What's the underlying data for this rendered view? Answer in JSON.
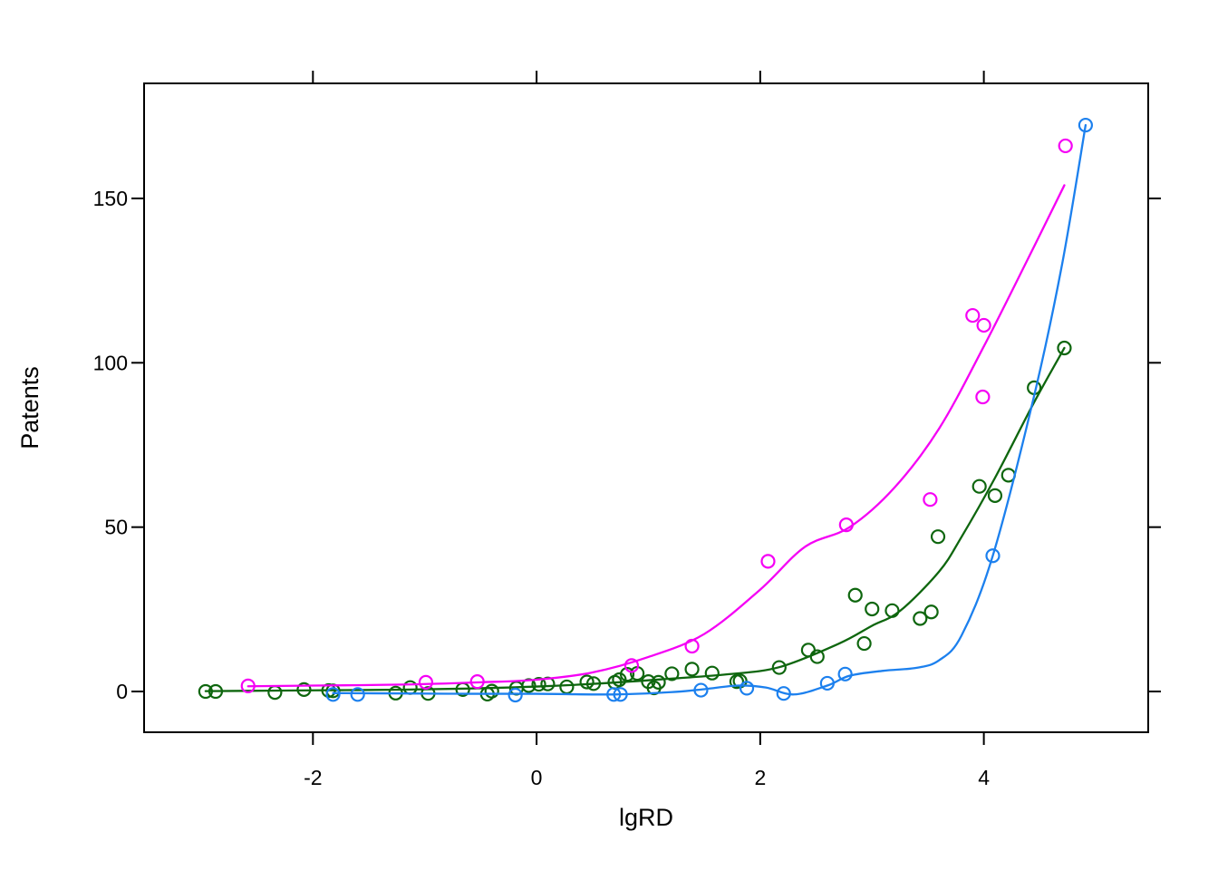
{
  "chart_data": {
    "type": "scatter",
    "title": "",
    "xlabel": "lgRD",
    "ylabel": "Patents",
    "xlim": [
      -3.51,
      5.47
    ],
    "ylim": [
      -12.4,
      185
    ],
    "x_ticks": [
      -2,
      0,
      2,
      4
    ],
    "y_ticks": [
      0,
      50,
      100,
      150
    ],
    "grid": false,
    "legend": "none",
    "marker": "open-circle",
    "frame_color": "#000000",
    "series": [
      {
        "name": "series-green",
        "color": "#0E660E",
        "points": [
          [
            -2.96,
            0.0
          ],
          [
            -2.87,
            0.0
          ],
          [
            -2.34,
            -0.3
          ],
          [
            -2.08,
            0.6
          ],
          [
            -1.86,
            0.3
          ],
          [
            -1.82,
            0.2
          ],
          [
            -1.26,
            -0.5
          ],
          [
            -1.13,
            1.2
          ],
          [
            -0.97,
            -0.6
          ],
          [
            -0.66,
            0.6
          ],
          [
            -0.44,
            -0.8
          ],
          [
            -0.4,
            0.1
          ],
          [
            -0.18,
            1.0
          ],
          [
            -0.07,
            1.8
          ],
          [
            0.02,
            2.2
          ],
          [
            0.1,
            2.3
          ],
          [
            0.27,
            1.4
          ],
          [
            0.45,
            2.9
          ],
          [
            0.51,
            2.4
          ],
          [
            0.7,
            2.8
          ],
          [
            0.74,
            3.6
          ],
          [
            0.81,
            5.2
          ],
          [
            0.9,
            5.5
          ],
          [
            1.0,
            3.0
          ],
          [
            1.05,
            1.1
          ],
          [
            1.09,
            2.8
          ],
          [
            1.21,
            5.4
          ],
          [
            1.39,
            6.8
          ],
          [
            1.57,
            5.6
          ],
          [
            1.79,
            3.0
          ],
          [
            1.82,
            3.2
          ],
          [
            2.17,
            7.3
          ],
          [
            2.43,
            12.6
          ],
          [
            2.51,
            10.6
          ],
          [
            2.85,
            29.3
          ],
          [
            2.93,
            14.6
          ],
          [
            3.0,
            25.1
          ],
          [
            3.18,
            24.6
          ],
          [
            3.43,
            22.2
          ],
          [
            3.53,
            24.2
          ],
          [
            3.59,
            47.1
          ],
          [
            3.96,
            62.4
          ],
          [
            4.1,
            59.6
          ],
          [
            4.22,
            65.8
          ],
          [
            4.45,
            92.4
          ],
          [
            4.72,
            104.5
          ]
        ],
        "smooth": [
          [
            -2.96,
            0.1
          ],
          [
            -2.4,
            0.25
          ],
          [
            -1.8,
            0.4
          ],
          [
            -1.2,
            0.55
          ],
          [
            -0.6,
            0.9
          ],
          [
            0,
            1.5
          ],
          [
            0.6,
            2.5
          ],
          [
            1.2,
            3.9
          ],
          [
            1.7,
            5.2
          ],
          [
            2.17,
            7.4
          ],
          [
            2.7,
            14.5
          ],
          [
            3.0,
            20.0
          ],
          [
            3.25,
            24.5
          ],
          [
            3.6,
            36.5
          ],
          [
            3.8,
            47.0
          ],
          [
            4.1,
            65.0
          ],
          [
            4.45,
            88.0
          ],
          [
            4.72,
            104.5
          ]
        ]
      },
      {
        "name": "series-magenta",
        "color": "#F500F5",
        "points": [
          [
            -2.58,
            1.7
          ],
          [
            -0.99,
            2.8
          ],
          [
            -0.53,
            3.0
          ],
          [
            0.85,
            7.9
          ],
          [
            1.39,
            13.8
          ],
          [
            2.07,
            39.6
          ],
          [
            2.77,
            50.7
          ],
          [
            3.52,
            58.4
          ],
          [
            3.9,
            114.4
          ],
          [
            3.99,
            89.6
          ],
          [
            4.0,
            111.4
          ],
          [
            4.73,
            166.0
          ]
        ],
        "smooth": [
          [
            -2.58,
            1.6
          ],
          [
            -2.0,
            1.8
          ],
          [
            -1.2,
            2.1
          ],
          [
            -0.5,
            2.8
          ],
          [
            0,
            3.6
          ],
          [
            0.5,
            5.8
          ],
          [
            1.0,
            10.5
          ],
          [
            1.5,
            17.5
          ],
          [
            2.0,
            31.0
          ],
          [
            2.4,
            44.0
          ],
          [
            2.8,
            50.0
          ],
          [
            3.2,
            62.0
          ],
          [
            3.6,
            80.0
          ],
          [
            4.0,
            105.0
          ],
          [
            4.4,
            132.0
          ],
          [
            4.72,
            154.0
          ]
        ]
      },
      {
        "name": "series-blue",
        "color": "#1C80EE",
        "points": [
          [
            -1.82,
            -0.9
          ],
          [
            -1.6,
            -0.9
          ],
          [
            -0.19,
            -1.1
          ],
          [
            0.69,
            -0.9
          ],
          [
            0.75,
            -0.9
          ],
          [
            1.47,
            0.4
          ],
          [
            1.88,
            1.0
          ],
          [
            2.21,
            -0.6
          ],
          [
            2.6,
            2.5
          ],
          [
            2.76,
            5.3
          ],
          [
            4.08,
            41.3
          ],
          [
            4.91,
            172.3
          ]
        ],
        "smooth": [
          [
            -1.82,
            -0.5
          ],
          [
            -1.2,
            -0.6
          ],
          [
            -0.6,
            -0.7
          ],
          [
            0,
            -0.7
          ],
          [
            0.7,
            -0.9
          ],
          [
            1.2,
            -0.2
          ],
          [
            1.5,
            0.7
          ],
          [
            1.8,
            1.8
          ],
          [
            2.05,
            1.2
          ],
          [
            2.3,
            -0.9
          ],
          [
            2.6,
            1.8
          ],
          [
            2.8,
            4.8
          ],
          [
            3.1,
            6.3
          ],
          [
            3.4,
            7.2
          ],
          [
            3.6,
            9.5
          ],
          [
            3.8,
            17.0
          ],
          [
            4.08,
            41.3
          ],
          [
            4.45,
            90.0
          ],
          [
            4.7,
            130.0
          ],
          [
            4.91,
            172.3
          ]
        ]
      }
    ]
  }
}
